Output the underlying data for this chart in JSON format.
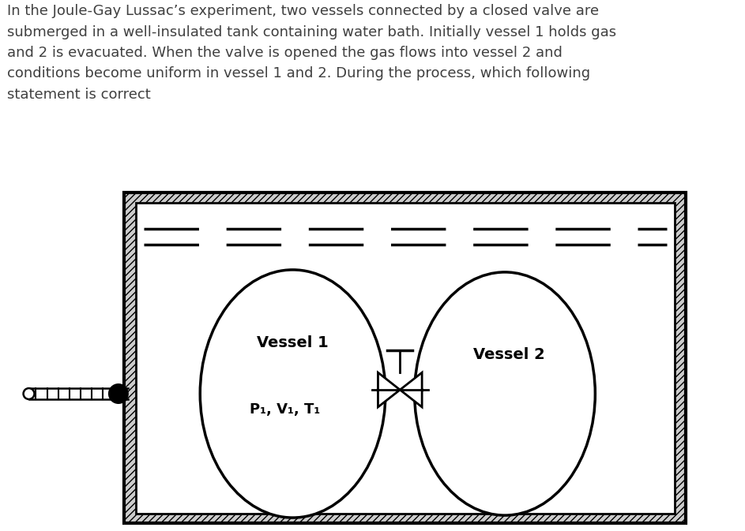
{
  "title_text": "In the Joule-Gay Lussac’s experiment, two vessels connected by a closed valve are\nsubmerged in a well-insulated tank containing water bath. Initially vessel 1 holds gas\nand 2 is evacuated. When the valve is opened the gas flows into vessel 2 and\nconditions become uniform in vessel 1 and 2. During the process, which following\nstatement is correct",
  "background_color": "#ffffff",
  "line_color": "#000000",
  "text_color": "#404040",
  "font_size_title": 13.0,
  "font_size_vessel": 14,
  "font_size_sublabel": 13,
  "vessel1_label": "Vessel 1",
  "vessel2_label": "Vessel 2",
  "vessel1_sublabel": "P₁, V₁, T₁",
  "tank_hatch": "////",
  "tank_hatch_color": "#bbbbbb"
}
